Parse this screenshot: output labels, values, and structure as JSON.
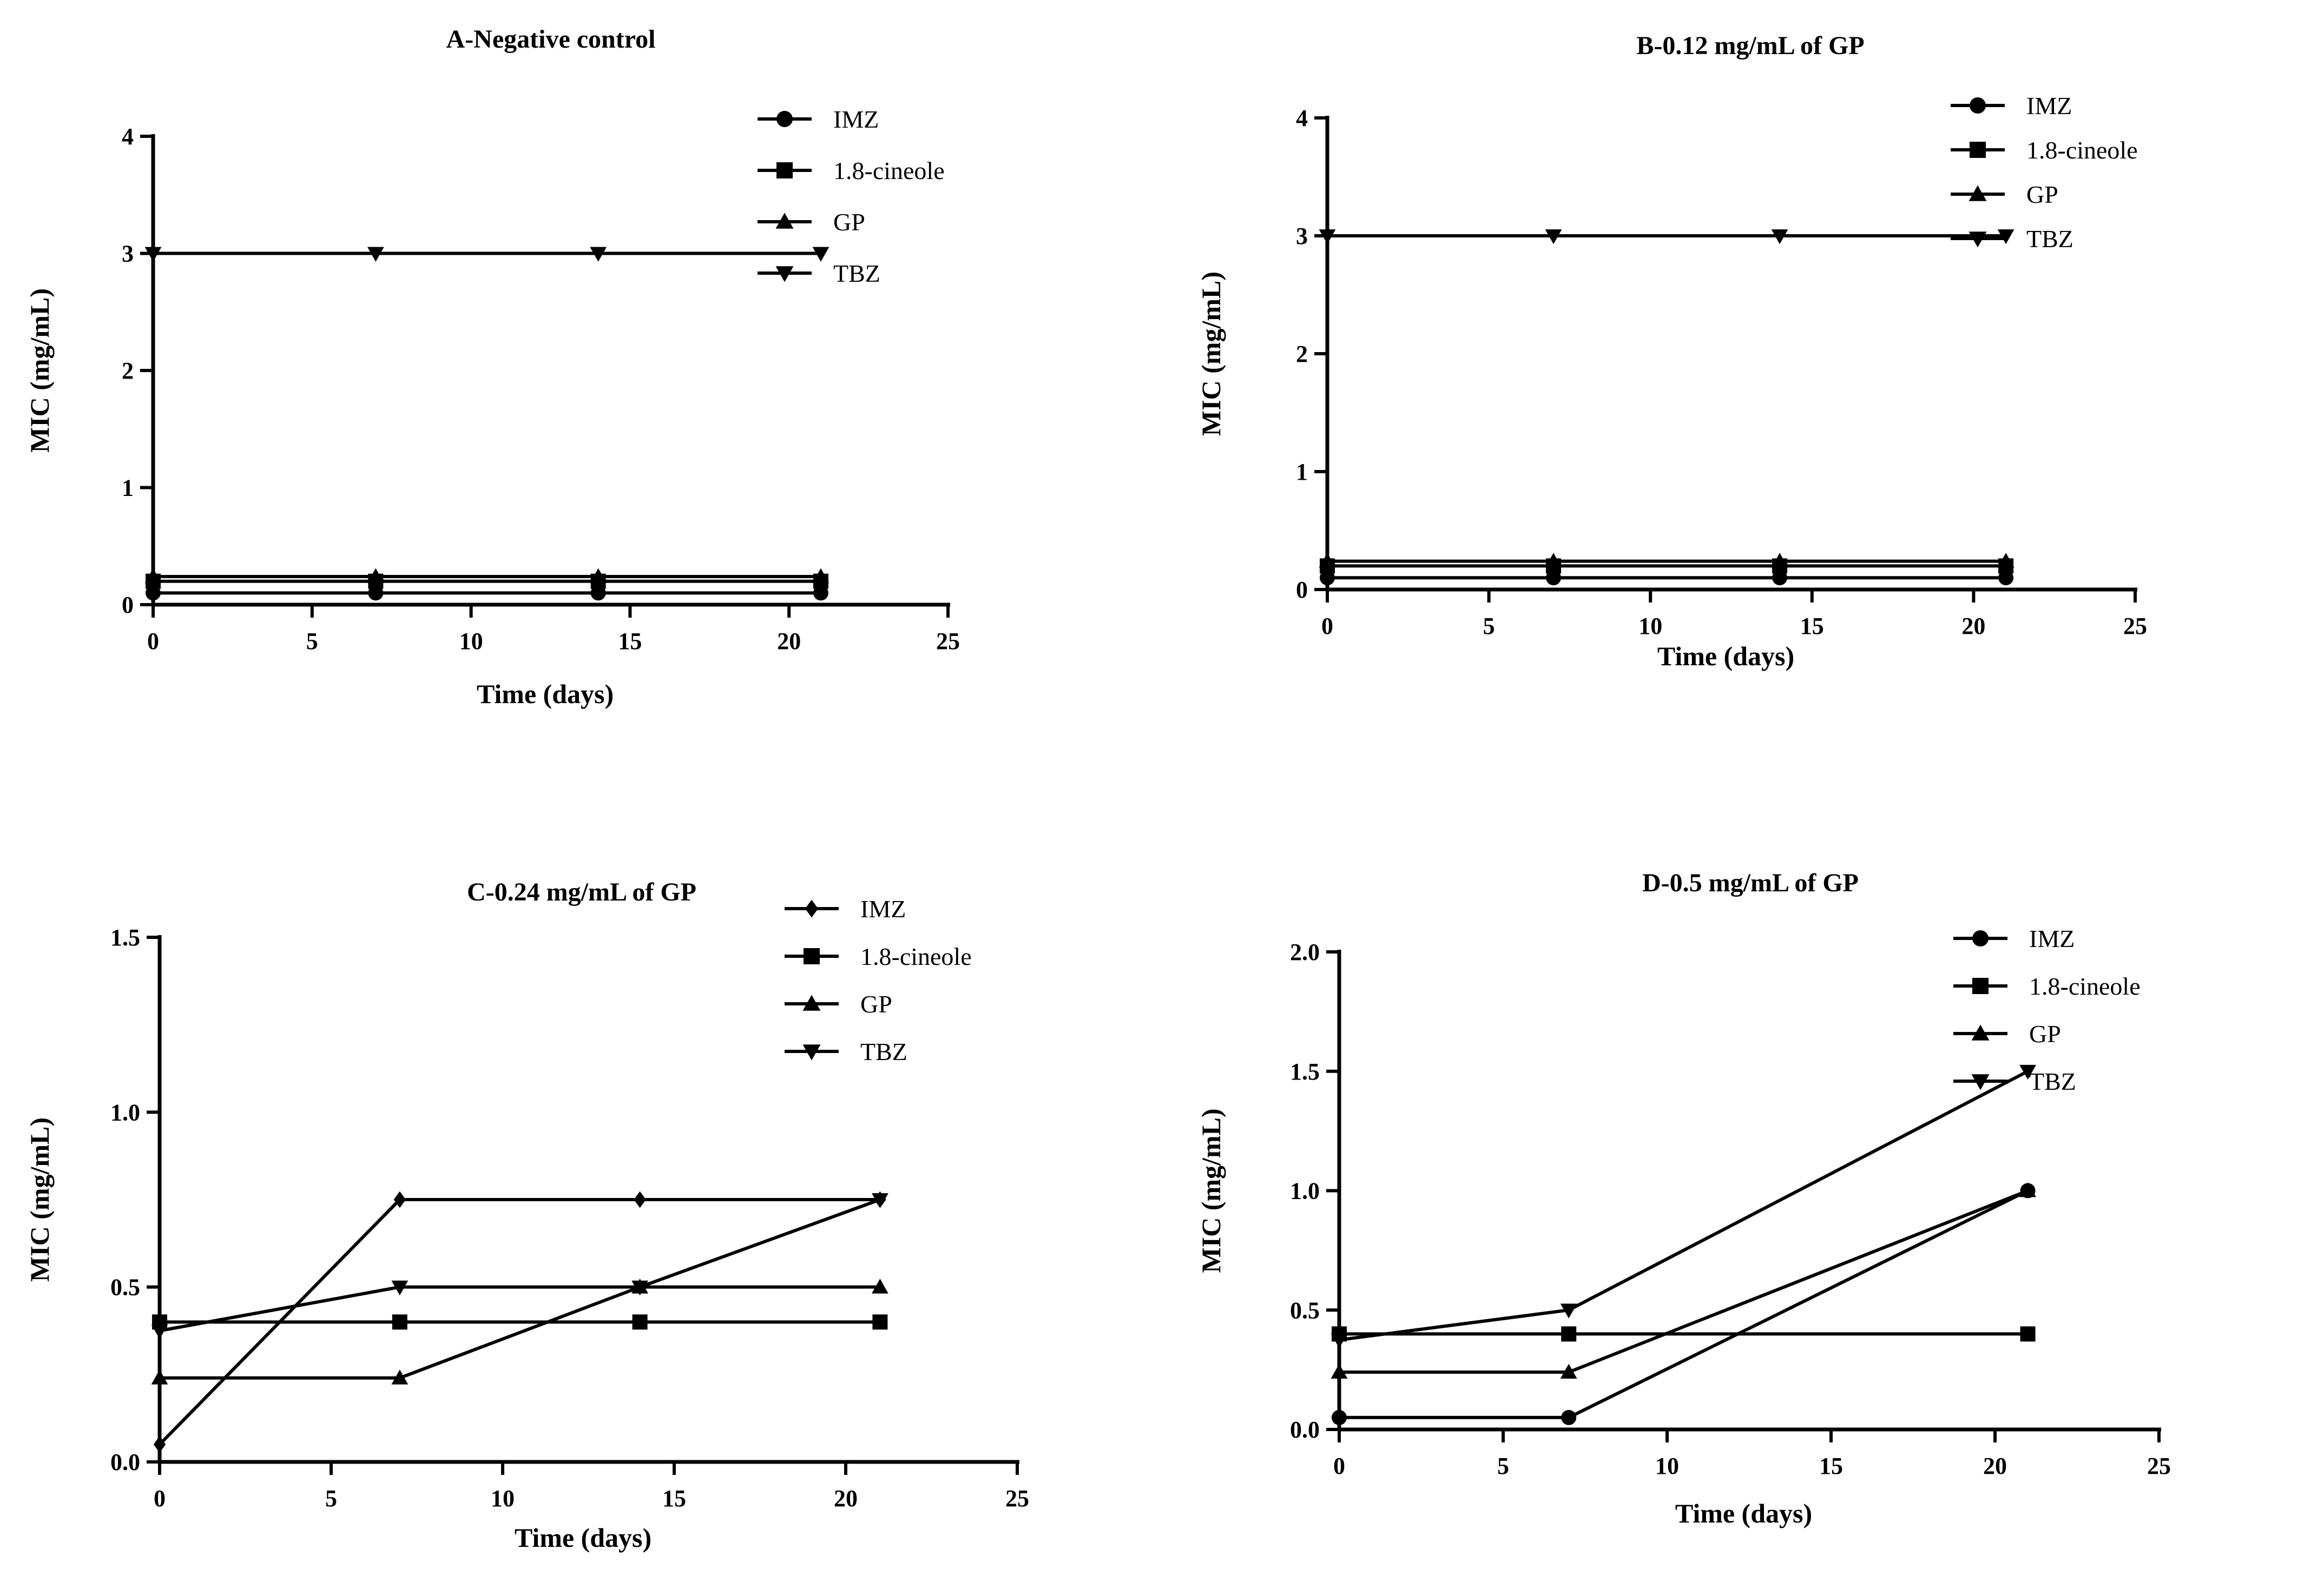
{
  "chart_data": [
    {
      "type": "line",
      "title": "A-Negative control",
      "xlabel": "Time (days)",
      "ylabel": "MIC (mg/mL)",
      "xlim": [
        0,
        25
      ],
      "ylim": [
        0,
        4
      ],
      "xticks": [
        "0",
        "5",
        "10",
        "15",
        "20",
        "25"
      ],
      "yticks": [
        "0",
        "1",
        "2",
        "3",
        "4"
      ],
      "x": [
        0,
        7,
        14,
        21
      ],
      "grid": false,
      "legend": "top-right",
      "series": [
        {
          "name": "IMZ",
          "marker": "circle",
          "values": [
            0.1,
            0.1,
            0.1,
            0.1
          ]
        },
        {
          "name": "1.8-cineole",
          "marker": "square",
          "values": [
            0.2,
            0.2,
            0.2,
            0.2
          ]
        },
        {
          "name": "GP",
          "marker": "triangle-up",
          "values": [
            0.24,
            0.24,
            0.24,
            0.24
          ]
        },
        {
          "name": "TBZ",
          "marker": "triangle-down",
          "values": [
            3,
            3,
            3,
            3
          ]
        }
      ]
    },
    {
      "type": "line",
      "title": "B-0.12 mg/mL of GP",
      "xlabel": "Time (days)",
      "ylabel": "MIC (mg/mL)",
      "xlim": [
        0,
        25
      ],
      "ylim": [
        0,
        4
      ],
      "xticks": [
        "0",
        "5",
        "10",
        "15",
        "20",
        "25"
      ],
      "yticks": [
        "0",
        "1",
        "2",
        "3",
        "4"
      ],
      "x": [
        0,
        7,
        14,
        21
      ],
      "grid": false,
      "legend": "top-right",
      "series": [
        {
          "name": "IMZ",
          "marker": "circle",
          "values": [
            0.1,
            0.1,
            0.1,
            0.1
          ]
        },
        {
          "name": "1.8-cineole",
          "marker": "square",
          "values": [
            0.2,
            0.2,
            0.2,
            0.2
          ]
        },
        {
          "name": "GP",
          "marker": "triangle-up",
          "values": [
            0.24,
            0.24,
            0.24,
            0.24
          ]
        },
        {
          "name": "TBZ",
          "marker": "triangle-down",
          "values": [
            3,
            3,
            3,
            3
          ]
        }
      ]
    },
    {
      "type": "line",
      "title": "C-0.24 mg/mL of GP",
      "xlabel": "Time (days)",
      "ylabel": "MIC (mg/mL)",
      "xlim": [
        0,
        25
      ],
      "ylim": [
        0,
        1.5
      ],
      "xticks": [
        "0",
        "5",
        "10",
        "15",
        "20",
        "25"
      ],
      "yticks": [
        "0.0",
        "0.5",
        "1.0",
        "1.5"
      ],
      "x": [
        0,
        7,
        14,
        21
      ],
      "grid": false,
      "legend": "top-right",
      "series": [
        {
          "name": "IMZ",
          "marker": "diamond",
          "values": [
            0.05,
            0.75,
            0.75,
            0.75
          ]
        },
        {
          "name": "1.8-cineole",
          "marker": "square",
          "values": [
            0.4,
            0.4,
            0.4,
            0.4
          ]
        },
        {
          "name": "GP",
          "marker": "triangle-up",
          "values": [
            0.24,
            0.24,
            0.5,
            0.5
          ]
        },
        {
          "name": "TBZ",
          "marker": "triangle-down",
          "values": [
            0.375,
            0.5,
            0.5,
            0.75
          ]
        }
      ]
    },
    {
      "type": "line",
      "title": "D-0.5 mg/mL of GP",
      "xlabel": "Time (days)",
      "ylabel": "MIC (mg/mL)",
      "xlim": [
        0,
        25
      ],
      "ylim": [
        0,
        2
      ],
      "xticks": [
        "0",
        "5",
        "10",
        "15",
        "20",
        "25"
      ],
      "yticks": [
        "0.0",
        "0.5",
        "1.0",
        "1.5",
        "2.0"
      ],
      "x": [
        0,
        7,
        21
      ],
      "grid": false,
      "legend": "top-right",
      "series": [
        {
          "name": "IMZ",
          "marker": "circle",
          "values": [
            0.05,
            0.05,
            1.0
          ]
        },
        {
          "name": "1.8-cineole",
          "marker": "square",
          "values": [
            0.4,
            0.4,
            0.4
          ]
        },
        {
          "name": "GP",
          "marker": "triangle-up",
          "values": [
            0.24,
            0.24,
            1.0
          ]
        },
        {
          "name": "TBZ",
          "marker": "triangle-down",
          "values": [
            0.375,
            0.5,
            1.5
          ]
        }
      ]
    }
  ]
}
